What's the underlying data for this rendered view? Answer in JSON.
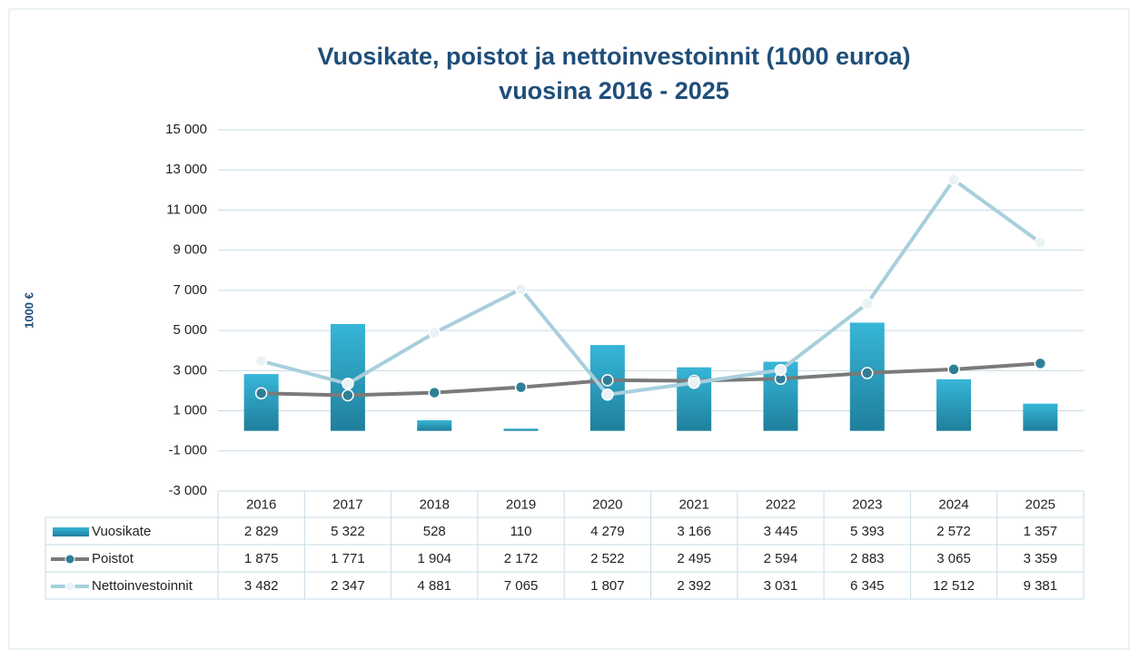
{
  "chart_data": {
    "type": "bar_line_table",
    "title": [
      "Vuosikate, poistot ja nettoinvestoinnit  (1000 euroa)",
      "vuosina 2016 - 2025"
    ],
    "y_label": "1000 €",
    "categories": [
      "2016",
      "2017",
      "2018",
      "2019",
      "2020",
      "2021",
      "2022",
      "2023",
      "2024",
      "2025"
    ],
    "series": [
      {
        "name": "Vuosikate",
        "kind": "bar",
        "color": "#2aa5c6",
        "values": [
          2829,
          5322,
          528,
          110,
          4279,
          3166,
          3445,
          5393,
          2572,
          1357
        ],
        "value_labels": [
          "2 829",
          "5 322",
          "528",
          "110",
          "4 279",
          "3 166",
          "3 445",
          "5 393",
          "2 572",
          "1 357"
        ]
      },
      {
        "name": "Poistot",
        "kind": "line",
        "color": "#7a7a7a",
        "marker_color": "#2f7e98",
        "values": [
          1875,
          1771,
          1904,
          2172,
          2522,
          2495,
          2594,
          2883,
          3065,
          3359
        ],
        "value_labels": [
          "1 875",
          "1 771",
          "1 904",
          "2 172",
          "2 522",
          "2 495",
          "2 594",
          "2 883",
          "3 065",
          "3 359"
        ]
      },
      {
        "name": "Nettoinvestoinnit",
        "kind": "line",
        "color": "#a8cfdc",
        "marker_color": "#e9f2f5",
        "values": [
          3482,
          2347,
          4881,
          7065,
          1807,
          2392,
          3031,
          6345,
          12512,
          9381
        ],
        "value_labels": [
          "3 482",
          "2 347",
          "4 881",
          "7 065",
          "1 807",
          "2 392",
          "3 031",
          "6 345",
          "12 512",
          "9 381"
        ]
      }
    ],
    "ylim": [
      -3000,
      15000
    ],
    "yticks": [
      {
        "value": -3000,
        "label": "-3 000"
      },
      {
        "value": -1000,
        "label": "-1 000"
      },
      {
        "value": 1000,
        "label": "1 000"
      },
      {
        "value": 3000,
        "label": "3 000"
      },
      {
        "value": 5000,
        "label": "5 000"
      },
      {
        "value": 7000,
        "label": "7 000"
      },
      {
        "value": 9000,
        "label": "9 000"
      },
      {
        "value": 11000,
        "label": "11 000"
      },
      {
        "value": 13000,
        "label": "13 000"
      },
      {
        "value": 15000,
        "label": "15 000"
      }
    ],
    "grid": true
  }
}
